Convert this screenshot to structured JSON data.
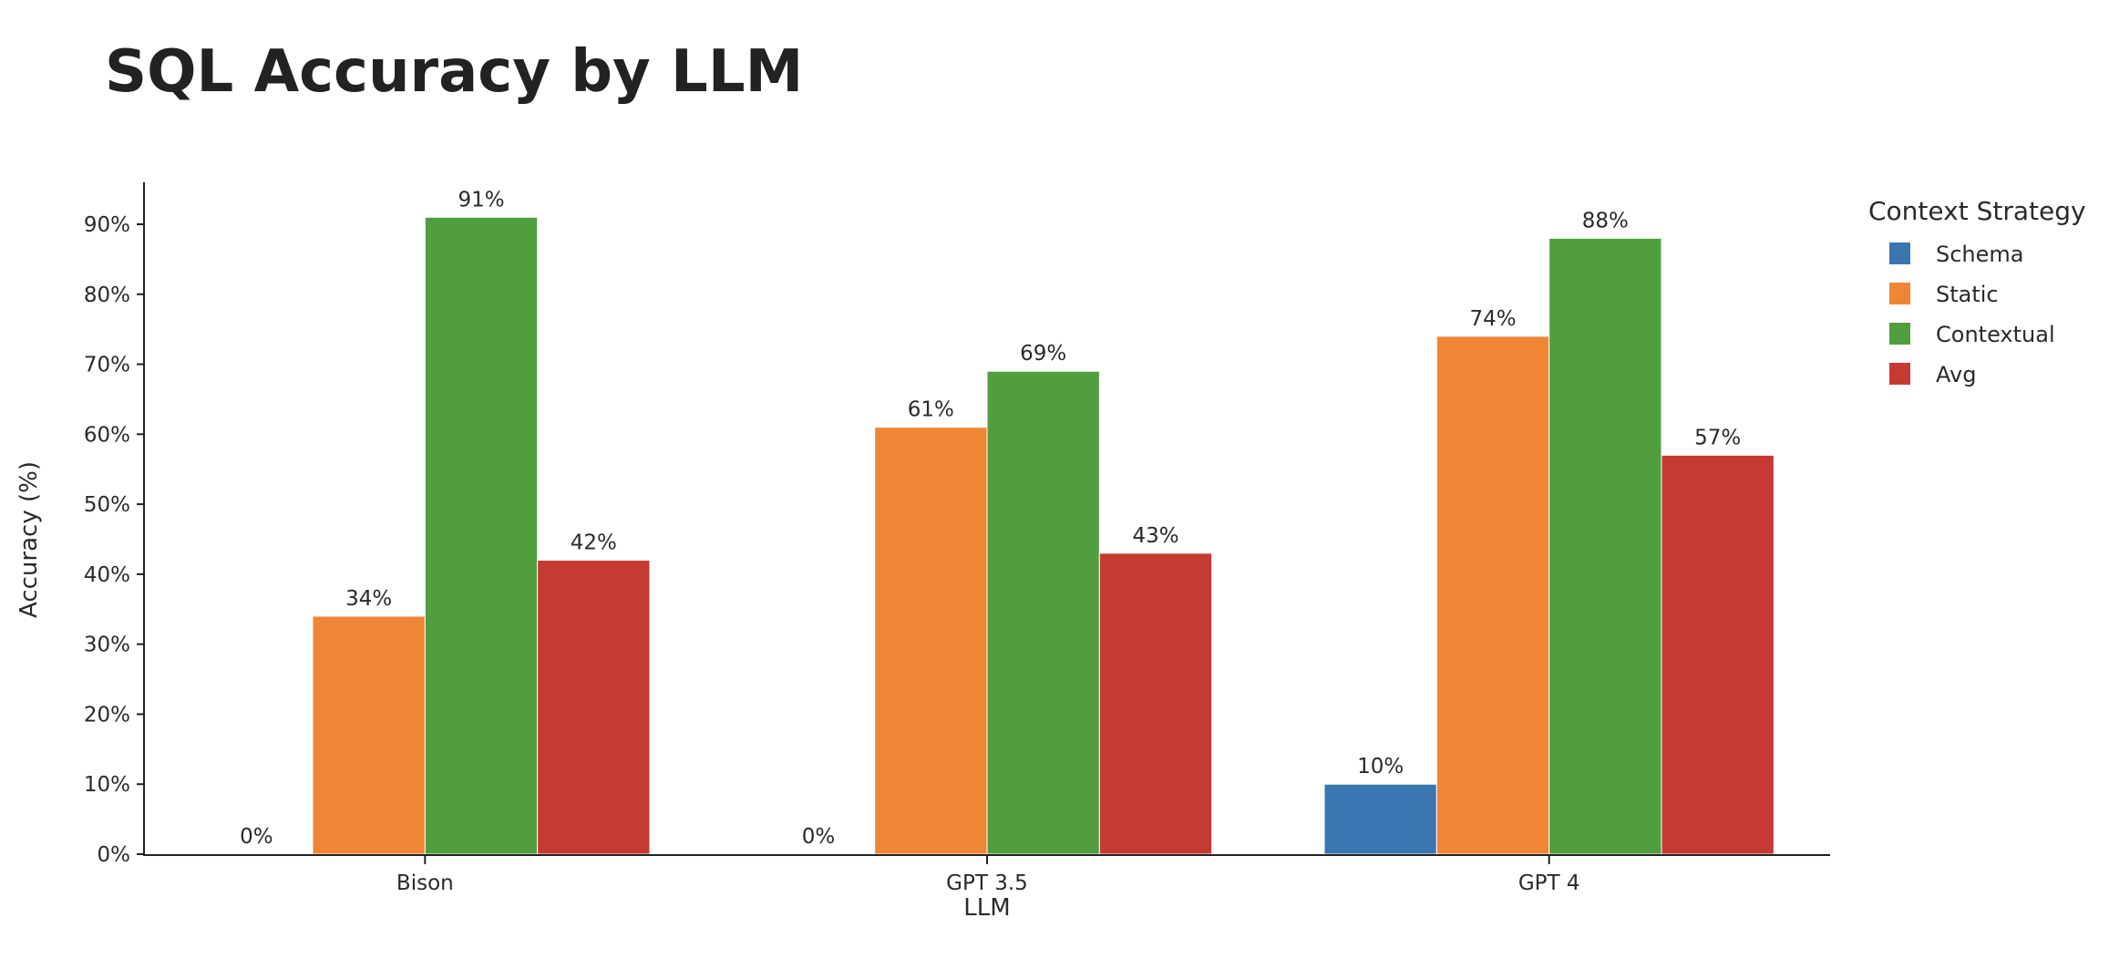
{
  "chart_data": {
    "type": "bar",
    "title": "SQL Accuracy by LLM",
    "xlabel": "LLM",
    "ylabel": "Accuracy (%)",
    "categories": [
      "Bison",
      "GPT 3.5",
      "GPT 4"
    ],
    "ylim": [
      0,
      95
    ],
    "yticks": [
      0,
      10,
      20,
      30,
      40,
      50,
      60,
      70,
      80,
      90
    ],
    "ytick_labels": [
      "0%",
      "10%",
      "20%",
      "30%",
      "40%",
      "50%",
      "60%",
      "70%",
      "80%",
      "90%"
    ],
    "grid": false,
    "legend": {
      "title": "Context Strategy",
      "placement": "right"
    },
    "series": [
      {
        "name": "Schema",
        "color": "#3b75af",
        "values": [
          0,
          0,
          10
        ],
        "labels": [
          "0%",
          "0%",
          "10%"
        ]
      },
      {
        "name": "Static",
        "color": "#ef8636",
        "values": [
          34,
          61,
          74
        ],
        "labels": [
          "34%",
          "61%",
          "74%"
        ]
      },
      {
        "name": "Contextual",
        "color": "#519e3e",
        "values": [
          91,
          69,
          88
        ],
        "labels": [
          "91%",
          "69%",
          "88%"
        ]
      },
      {
        "name": "Avg",
        "color": "#c53a32",
        "values": [
          42,
          43,
          57
        ],
        "labels": [
          "42%",
          "43%",
          "57%"
        ]
      }
    ]
  }
}
